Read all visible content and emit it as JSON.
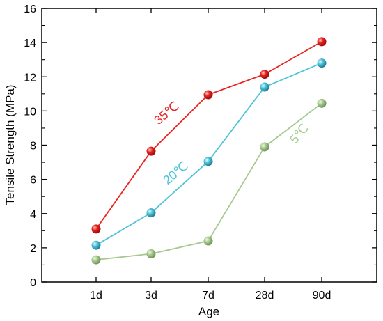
{
  "chart_data": {
    "type": "line",
    "categories": [
      "1d",
      "3d",
      "7d",
      "28d",
      "90d"
    ],
    "xlabel": "Age",
    "ylabel": "Tensile Strength (MPa)",
    "ylim": [
      0,
      16
    ],
    "yticks": [
      0,
      2,
      4,
      6,
      8,
      10,
      12,
      14,
      16
    ],
    "grid": false,
    "legend": "none",
    "series": [
      {
        "name": "35℃",
        "color": "#e8231f",
        "values": [
          3.1,
          7.65,
          10.95,
          12.15,
          14.05
        ]
      },
      {
        "name": "20℃",
        "color": "#4fc3d8",
        "values": [
          2.15,
          4.05,
          7.05,
          11.4,
          12.8
        ]
      },
      {
        "name": "5℃",
        "color": "#a7c98f",
        "values": [
          1.3,
          1.65,
          2.4,
          7.9,
          10.45
        ]
      }
    ]
  }
}
